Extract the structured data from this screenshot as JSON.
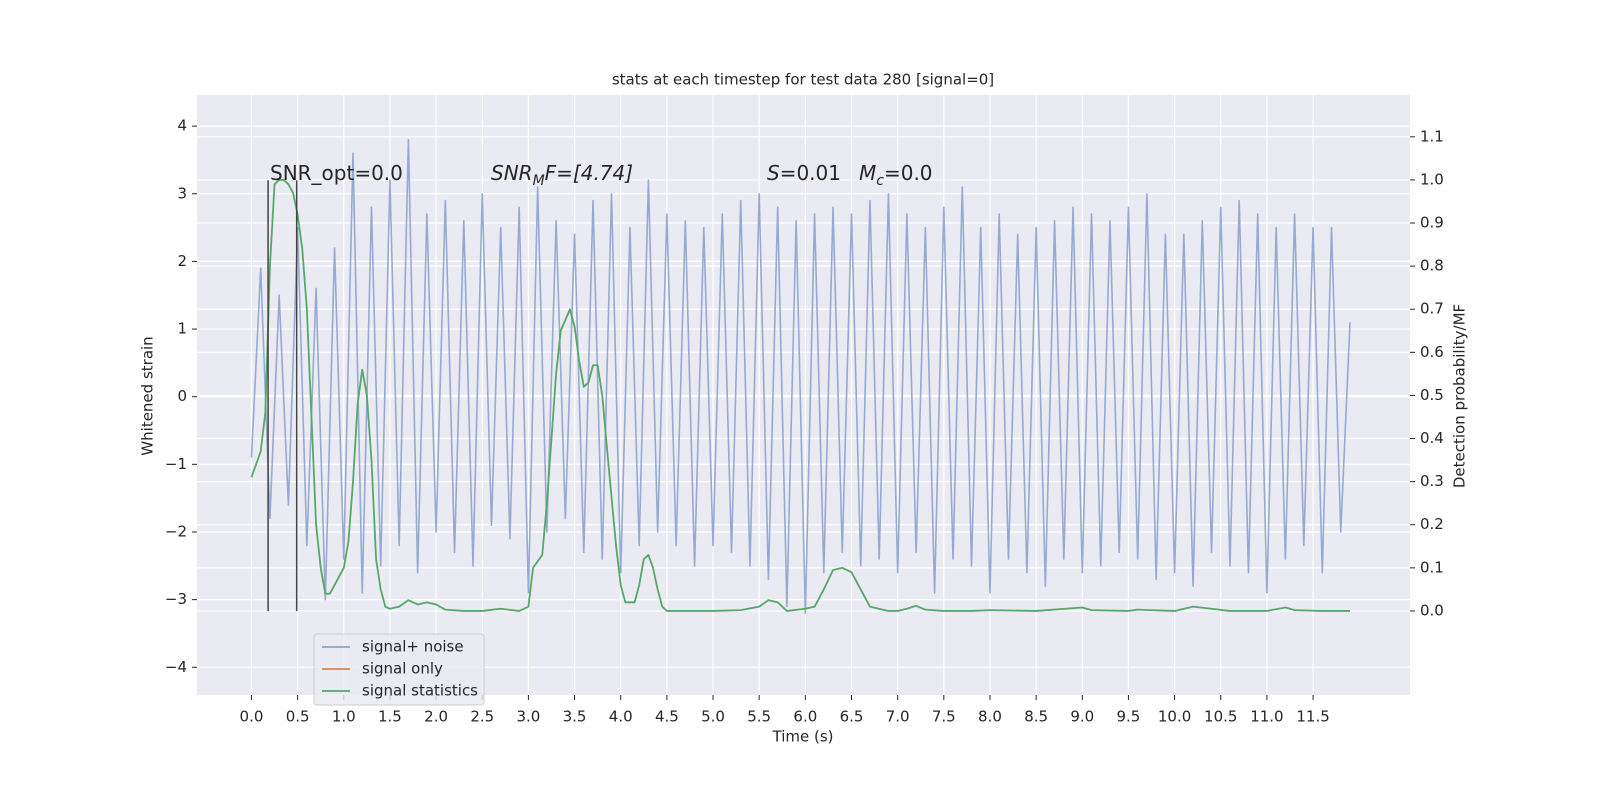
{
  "chart_data": {
    "type": "line",
    "title": "stats at each timestep for test data 280 [signal=0]",
    "x_label": "Time (s)",
    "y_label": "Whitened strain",
    "y2_label": "Detection probability/MF",
    "annotations": [
      [
        "SNR_opt=0.0"
      ],
      [
        "SNR",
        "M",
        "F=[4.74]"
      ],
      [
        "S",
        "=0.01"
      ],
      [
        "M",
        "c",
        "=0.0"
      ]
    ],
    "xlim": [
      -0.59,
      12.55
    ],
    "ylim": [
      -4.41,
      4.46
    ],
    "y2lim": [
      -0.195,
      1.197
    ],
    "xticks": [
      {
        "value": 0,
        "label": "0.0"
      },
      0.5,
      {
        "value": 1,
        "label": "1.0"
      },
      1.5,
      {
        "value": 2,
        "label": "2.0"
      },
      2.5,
      {
        "value": 3,
        "label": "3.0"
      },
      3.5,
      {
        "value": 4,
        "label": "4.0"
      },
      4.5,
      {
        "value": 5,
        "label": "5.0"
      },
      5.5,
      {
        "value": 6,
        "label": "6.0"
      },
      6.5,
      {
        "value": 7,
        "label": "7.0"
      },
      7.5,
      {
        "value": 8,
        "label": "8.0"
      },
      8.5,
      {
        "value": 9,
        "label": "9.0"
      },
      9.5,
      {
        "value": 10,
        "label": "10.0"
      },
      10.5,
      {
        "value": 11,
        "label": "11.0"
      },
      11.5
    ],
    "yticks": [
      {
        "value": -4,
        "label": "−4"
      },
      {
        "value": -3,
        "label": "−3"
      },
      {
        "value": -2,
        "label": "−2"
      },
      {
        "value": -1,
        "label": "−1"
      },
      0,
      1,
      2,
      3,
      4
    ],
    "y2ticks": [
      {
        "value": 0,
        "label": "0.0"
      },
      0.1,
      0.2,
      0.3,
      0.4,
      0.5,
      0.6,
      0.7,
      0.8,
      0.9,
      {
        "value": 1,
        "label": "1.0"
      },
      1.1
    ],
    "grid": true,
    "vlines": [
      0.18,
      0.49
    ],
    "vline_range": [
      -3.17,
      3.2
    ],
    "vline_color": "#444444",
    "series": [
      {
        "name": "signal+ noise",
        "color": "#8ea2cc",
        "x": [
          0.0,
          0.1,
          0.2,
          0.3,
          0.4,
          0.5,
          0.6,
          0.7,
          0.8,
          0.9,
          1.0,
          1.1,
          1.2,
          1.3,
          1.4,
          1.5,
          1.6,
          1.7,
          1.8,
          1.9,
          2.0,
          2.1,
          2.2,
          2.3,
          2.4,
          2.5,
          2.6,
          2.7,
          2.8,
          2.9,
          3.0,
          3.1,
          3.2,
          3.3,
          3.4,
          3.5,
          3.6,
          3.7,
          3.8,
          3.9,
          4.0,
          4.1,
          4.2,
          4.3,
          4.4,
          4.5,
          4.6,
          4.7,
          4.8,
          4.9,
          5.0,
          5.1,
          5.2,
          5.3,
          5.4,
          5.5,
          5.6,
          5.7,
          5.8,
          5.9,
          6.0,
          6.1,
          6.2,
          6.3,
          6.4,
          6.5,
          6.6,
          6.7,
          6.8,
          6.9,
          7.0,
          7.1,
          7.2,
          7.3,
          7.4,
          7.5,
          7.6,
          7.7,
          7.8,
          7.9,
          8.0,
          8.1,
          8.2,
          8.3,
          8.4,
          8.5,
          8.6,
          8.7,
          8.8,
          8.9,
          9.0,
          9.1,
          9.2,
          9.3,
          9.4,
          9.5,
          9.6,
          9.7,
          9.8,
          9.9,
          10.0,
          10.1,
          10.2,
          10.3,
          10.4,
          10.5,
          10.6,
          10.7,
          10.8,
          10.9,
          11.0,
          11.1,
          11.2,
          11.3,
          11.4,
          11.5,
          11.6,
          11.7,
          11.8,
          11.9
        ],
        "values": [
          -0.9,
          1.9,
          -1.8,
          1.5,
          -1.6,
          2.5,
          -2.2,
          1.6,
          -3.0,
          2.2,
          -2.4,
          3.6,
          -2.9,
          2.8,
          -2.5,
          3.2,
          -2.2,
          3.8,
          -2.6,
          2.7,
          -2.0,
          2.9,
          -2.3,
          2.6,
          -2.5,
          3.0,
          -1.9,
          2.5,
          -2.1,
          2.8,
          -2.9,
          3.1,
          -2.0,
          2.6,
          -1.8,
          2.4,
          -2.3,
          2.9,
          -2.4,
          3.0,
          -2.6,
          2.5,
          -2.2,
          3.2,
          -2.0,
          2.7,
          -2.2,
          2.6,
          -2.5,
          2.5,
          -2.2,
          2.7,
          -2.3,
          2.9,
          -2.5,
          3.0,
          -2.7,
          2.8,
          -3.1,
          2.6,
          -3.2,
          2.7,
          -2.6,
          2.8,
          -2.3,
          2.7,
          -2.5,
          2.9,
          -2.4,
          3.0,
          -2.6,
          2.7,
          -2.3,
          2.5,
          -2.9,
          2.8,
          -2.4,
          3.1,
          -2.5,
          2.5,
          -2.9,
          2.7,
          -2.4,
          2.4,
          -2.6,
          2.5,
          -2.8,
          2.6,
          -2.4,
          2.8,
          -2.6,
          2.7,
          -2.5,
          2.6,
          -2.3,
          2.8,
          -2.4,
          3.0,
          -2.7,
          2.4,
          -2.6,
          2.4,
          -2.8,
          2.6,
          -2.3,
          2.8,
          -2.5,
          2.9,
          -2.6,
          2.7,
          -2.9,
          2.5,
          -2.4,
          2.7,
          -2.2,
          2.5,
          -2.6,
          2.5,
          -2.0,
          1.1
        ]
      },
      {
        "name": "signal only",
        "color": "#dd8452",
        "x": [],
        "values": []
      },
      {
        "name": "signal statistics",
        "color": "#55a868",
        "axis": "y2",
        "x": [
          0.0,
          0.1,
          0.15,
          0.2,
          0.25,
          0.3,
          0.35,
          0.4,
          0.45,
          0.5,
          0.55,
          0.6,
          0.65,
          0.7,
          0.75,
          0.8,
          0.85,
          0.9,
          1.0,
          1.05,
          1.1,
          1.15,
          1.2,
          1.25,
          1.3,
          1.35,
          1.4,
          1.45,
          1.5,
          1.6,
          1.7,
          1.8,
          1.9,
          2.0,
          2.1,
          2.3,
          2.5,
          2.7,
          2.9,
          3.0,
          3.05,
          3.15,
          3.2,
          3.3,
          3.35,
          3.45,
          3.5,
          3.55,
          3.6,
          3.65,
          3.7,
          3.75,
          3.8,
          3.85,
          3.95,
          4.0,
          4.05,
          4.15,
          4.2,
          4.25,
          4.3,
          4.35,
          4.4,
          4.45,
          4.5,
          4.7,
          5.0,
          5.3,
          5.5,
          5.6,
          5.7,
          5.8,
          6.0,
          6.1,
          6.2,
          6.3,
          6.4,
          6.5,
          6.6,
          6.7,
          6.9,
          7.0,
          7.1,
          7.2,
          7.3,
          7.5,
          7.8,
          8.0,
          8.5,
          9.0,
          9.1,
          9.5,
          9.6,
          10.0,
          10.2,
          10.4,
          10.6,
          11.0,
          11.2,
          11.3,
          11.6,
          11.9
        ],
        "values": [
          0.31,
          0.37,
          0.46,
          0.8,
          0.99,
          1.0,
          1.0,
          0.99,
          0.97,
          0.92,
          0.84,
          0.7,
          0.45,
          0.2,
          0.1,
          0.04,
          0.04,
          0.06,
          0.1,
          0.16,
          0.3,
          0.48,
          0.56,
          0.5,
          0.35,
          0.12,
          0.05,
          0.01,
          0.005,
          0.01,
          0.025,
          0.015,
          0.02,
          0.015,
          0.003,
          0.0,
          0.0,
          0.005,
          0.0,
          0.01,
          0.1,
          0.13,
          0.25,
          0.55,
          0.65,
          0.7,
          0.66,
          0.58,
          0.52,
          0.53,
          0.57,
          0.57,
          0.5,
          0.38,
          0.15,
          0.06,
          0.02,
          0.02,
          0.06,
          0.12,
          0.13,
          0.1,
          0.05,
          0.01,
          0.0,
          0.0,
          0.0,
          0.002,
          0.01,
          0.025,
          0.02,
          0.0,
          0.005,
          0.01,
          0.05,
          0.095,
          0.1,
          0.09,
          0.05,
          0.01,
          0.0,
          0.0,
          0.005,
          0.012,
          0.003,
          0.0,
          0.0,
          0.002,
          0.0,
          0.008,
          0.002,
          0.0,
          0.003,
          0.0,
          0.01,
          0.005,
          0.0,
          0.0,
          0.008,
          0.002,
          0.0,
          0.0
        ]
      }
    ]
  }
}
